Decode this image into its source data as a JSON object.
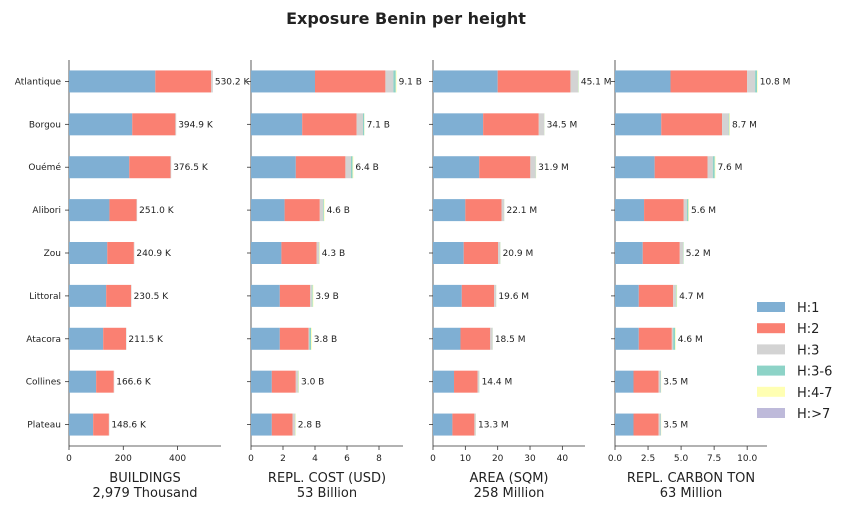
{
  "chart_data": {
    "type": "bar",
    "orientation": "horizontal",
    "stacked": true,
    "title": "Exposure Benin per height",
    "categories": [
      "Atlantique",
      "Borgou",
      "Ouémé",
      "Alibori",
      "Zou",
      "Littoral",
      "Atacora",
      "Collines",
      "Plateau"
    ],
    "legend": {
      "placement": "right",
      "entries": [
        {
          "name": "H:1",
          "color": "#7fafd3"
        },
        {
          "name": "H:2",
          "color": "#fa8072"
        },
        {
          "name": "H:3",
          "color": "#d3d3d3"
        },
        {
          "name": "H:3-6",
          "color": "#8dd3c7"
        },
        {
          "name": "H:4-7",
          "color": "#ffffb3"
        },
        {
          "name": "H:>7",
          "color": "#bebada"
        }
      ]
    },
    "panels": [
      {
        "xlabel": "BUILDINGS",
        "total_label": "2,979 Thousand",
        "xlim": [
          0,
          560
        ],
        "xticks": [
          0,
          200,
          400
        ],
        "xtick_labels": [
          "0",
          "200",
          "400"
        ],
        "totals_text": [
          "530.2 K",
          "394.9 K",
          "376.5 K",
          "251.0 K",
          "240.9 K",
          "230.5 K",
          "211.5 K",
          "166.6 K",
          "148.6 K"
        ],
        "series": [
          {
            "name": "H:1",
            "values": [
              318,
              233,
              222,
              149,
              141,
              137,
              126,
              100,
              89
            ]
          },
          {
            "name": "H:2",
            "values": [
              206,
              159,
              152,
              100,
              98,
              92,
              84,
              65,
              58
            ]
          },
          {
            "name": "H:3",
            "values": [
              6,
              3,
              2.5,
              2,
              1.9,
              1.5,
              1.5,
              1.6,
              1.6
            ]
          },
          {
            "name": "H:3-6",
            "values": [
              0,
              0,
              0,
              0,
              0,
              0,
              0,
              0,
              0
            ]
          },
          {
            "name": "H:4-7",
            "values": [
              0,
              0,
              0,
              0,
              0,
              0,
              0,
              0,
              0
            ]
          },
          {
            "name": "H:>7",
            "values": [
              0,
              0,
              0,
              0,
              0,
              0,
              0,
              0,
              0
            ]
          }
        ]
      },
      {
        "xlabel": "REPL. COST (USD)",
        "total_label": "53 Billion",
        "xlim": [
          0,
          9.5
        ],
        "xticks": [
          0,
          2,
          4,
          6,
          8
        ],
        "xtick_labels": [
          "0",
          "2",
          "4",
          "6",
          "8"
        ],
        "totals_text": [
          "9.1 B",
          "7.1 B",
          "6.4 B",
          "4.6 B",
          "4.3 B",
          "3.9 B",
          "3.8 B",
          "3.0 B",
          "2.8 B"
        ],
        "series": [
          {
            "name": "H:1",
            "values": [
              4.0,
              3.2,
              2.8,
              2.1,
              1.9,
              1.8,
              1.8,
              1.3,
              1.3
            ]
          },
          {
            "name": "H:2",
            "values": [
              4.4,
              3.4,
              3.1,
              2.2,
              2.2,
              1.9,
              1.8,
              1.5,
              1.3
            ]
          },
          {
            "name": "H:3",
            "values": [
              0.5,
              0.4,
              0.35,
              0.2,
              0.15,
              0.1,
              0.05,
              0.15,
              0.15
            ]
          },
          {
            "name": "H:3-6",
            "values": [
              0.15,
              0.08,
              0.1,
              0.05,
              0.02,
              0.05,
              0.1,
              0.02,
              0.02
            ]
          },
          {
            "name": "H:4-7",
            "values": [
              0.05,
              0.02,
              0.05,
              0.05,
              0.03,
              0.05,
              0.05,
              0.03,
              0.03
            ]
          },
          {
            "name": "H:>7",
            "values": [
              0,
              0,
              0,
              0,
              0,
              0,
              0,
              0,
              0
            ]
          }
        ]
      },
      {
        "xlabel": "AREA (SQM)",
        "total_label": "258 Million",
        "xlim": [
          0,
          47
        ],
        "xticks": [
          0,
          10,
          20,
          30,
          40
        ],
        "xtick_labels": [
          "0",
          "10",
          "20",
          "30",
          "40"
        ],
        "totals_text": [
          "45.1 M",
          "34.5 M",
          "31.9 M",
          "22.1 M",
          "20.9 M",
          "19.6 M",
          "18.5 M",
          "14.4 M",
          "13.3 M"
        ],
        "series": [
          {
            "name": "H:1",
            "values": [
              20.0,
              15.5,
              14.3,
              10.0,
              9.5,
              8.9,
              8.5,
              6.5,
              6.0
            ]
          },
          {
            "name": "H:2",
            "values": [
              22.5,
              17.2,
              15.8,
              11.2,
              10.6,
              10.0,
              9.2,
              7.3,
              6.8
            ]
          },
          {
            "name": "H:3",
            "values": [
              2.4,
              1.7,
              1.6,
              0.8,
              0.7,
              0.6,
              0.7,
              0.5,
              0.4
            ]
          },
          {
            "name": "H:3-6",
            "values": [
              0.1,
              0.05,
              0.1,
              0.05,
              0.05,
              0.05,
              0.05,
              0.05,
              0.05
            ]
          },
          {
            "name": "H:4-7",
            "values": [
              0.1,
              0.05,
              0.1,
              0.05,
              0.05,
              0.05,
              0.05,
              0.05,
              0.05
            ]
          },
          {
            "name": "H:>7",
            "values": [
              0,
              0,
              0,
              0,
              0,
              0,
              0,
              0,
              0
            ]
          }
        ]
      },
      {
        "xlabel": "REPL. CARBON TON",
        "total_label": "63 Million",
        "xlim": [
          0,
          11.5
        ],
        "xticks": [
          0,
          2.5,
          5,
          7.5,
          10
        ],
        "xtick_labels": [
          "0.0",
          "2.5",
          "5.0",
          "7.5",
          "10.0"
        ],
        "totals_text": [
          "10.8 M",
          "8.7 M",
          "7.6 M",
          "5.6 M",
          "5.2 M",
          "4.7 M",
          "4.6 M",
          "3.5 M",
          "3.5 M"
        ],
        "series": [
          {
            "name": "H:1",
            "values": [
              4.2,
              3.5,
              3.0,
              2.2,
              2.1,
              1.8,
              1.8,
              1.4,
              1.4
            ]
          },
          {
            "name": "H:2",
            "values": [
              5.8,
              4.6,
              4.0,
              3.0,
              2.8,
              2.6,
              2.5,
              1.9,
              1.9
            ]
          },
          {
            "name": "H:3",
            "values": [
              0.6,
              0.5,
              0.4,
              0.25,
              0.25,
              0.2,
              0.1,
              0.15,
              0.15
            ]
          },
          {
            "name": "H:3-6",
            "values": [
              0.15,
              0.05,
              0.15,
              0.1,
              0.03,
              0.05,
              0.15,
              0.03,
              0.03
            ]
          },
          {
            "name": "H:4-7",
            "values": [
              0.05,
              0.05,
              0.05,
              0.05,
              0.02,
              0.05,
              0.05,
              0.02,
              0.02
            ]
          },
          {
            "name": "H:>7",
            "values": [
              0,
              0,
              0,
              0,
              0,
              0,
              0,
              0,
              0
            ]
          }
        ]
      }
    ]
  }
}
